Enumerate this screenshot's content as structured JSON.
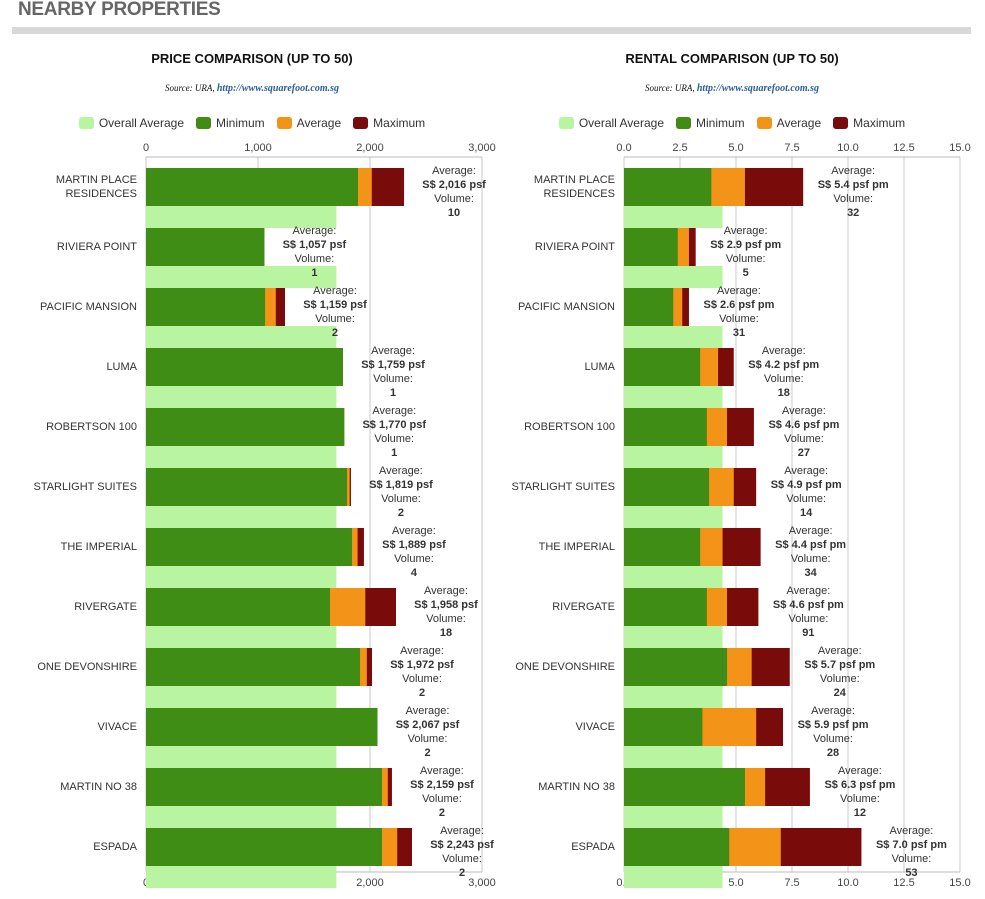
{
  "header": {
    "title": "NEARBY PROPERTIES"
  },
  "chart_data": [
    {
      "type": "bar",
      "orientation": "horizontal",
      "title": "PRICE COMPARISON (UP TO 50)",
      "source": "Source: URA,",
      "source_link": "http://www.squarefoot.com.sg",
      "categories": [
        "MARTIN PLACE\nRESIDENCES",
        "RIVIERA POINT",
        "PACIFIC MANSION",
        "LUMA",
        "ROBERTSON 100",
        "STARLIGHT SUITES",
        "THE IMPERIAL",
        "RIVERGATE",
        "ONE DEVONSHIRE",
        "VIVACE",
        "MARTIN NO 38",
        "ESPADA"
      ],
      "series": [
        {
          "name": "Overall Average",
          "color": "#b9f5a0",
          "values": [
            1700,
            1700,
            1700,
            1700,
            1700,
            1700,
            1700,
            1700,
            1700,
            1700,
            1700,
            1700
          ]
        },
        {
          "name": "Minimum",
          "color": "#3f8d14",
          "values": [
            1893,
            1057,
            1063,
            1759,
            1770,
            1795,
            1839,
            1643,
            1911,
            2067,
            2107,
            2107
          ]
        },
        {
          "name": "Average",
          "color": "#f39419",
          "values": [
            2016,
            1057,
            1159,
            1759,
            1770,
            1819,
            1889,
            1958,
            1972,
            2067,
            2159,
            2243
          ],
          "value_labels": [
            "S$ 2,016 psf",
            "S$ 1,057 psf",
            "S$ 1,159 psf",
            "S$ 1,759 psf",
            "S$ 1,770 psf",
            "S$ 1,819 psf",
            "S$ 1,889 psf",
            "S$ 1,958 psf",
            "S$ 1,972 psf",
            "S$ 2,067 psf",
            "S$ 2,159 psf",
            "S$ 2,243 psf"
          ]
        },
        {
          "name": "Maximum",
          "color": "#7a0b0b",
          "values": [
            2304,
            1057,
            1241,
            1759,
            1770,
            1830,
            1946,
            2232,
            2018,
            2067,
            2196,
            2375
          ]
        }
      ],
      "average_label": "Average:",
      "volume_label": "Volume:",
      "volumes": [
        10,
        1,
        2,
        1,
        1,
        2,
        4,
        18,
        2,
        2,
        2,
        2
      ],
      "xlim": [
        0,
        3000
      ],
      "xticks": [
        0,
        {
          "value": 1000,
          "label": "1,000"
        },
        {
          "value": 2000,
          "label": "2,000"
        },
        {
          "value": 3000,
          "label": "3,000"
        }
      ],
      "grid": true
    },
    {
      "type": "bar",
      "orientation": "horizontal",
      "title": "RENTAL COMPARISON (UP TO 50)",
      "source": "Source: URA,",
      "source_link": "http://www.squarefoot.com.sg",
      "categories": [
        "MARTIN PLACE\nRESIDENCES",
        "RIVIERA POINT",
        "PACIFIC MANSION",
        "LUMA",
        "ROBERTSON 100",
        "STARLIGHT SUITES",
        "THE IMPERIAL",
        "RIVERGATE",
        "ONE DEVONSHIRE",
        "VIVACE",
        "MARTIN NO 38",
        "ESPADA"
      ],
      "series": [
        {
          "name": "Overall Average",
          "color": "#b9f5a0",
          "values": [
            4.4,
            4.4,
            4.4,
            4.4,
            4.4,
            4.4,
            4.4,
            4.4,
            4.4,
            4.4,
            4.4,
            4.4
          ]
        },
        {
          "name": "Minimum",
          "color": "#3f8d14",
          "values": [
            3.9,
            2.4,
            2.2,
            3.4,
            3.7,
            3.8,
            3.4,
            3.7,
            4.6,
            3.5,
            5.4,
            4.7
          ]
        },
        {
          "name": "Average",
          "color": "#f39419",
          "values": [
            5.4,
            2.9,
            2.6,
            4.2,
            4.6,
            4.9,
            4.4,
            4.6,
            5.7,
            5.9,
            6.3,
            7.0
          ],
          "value_labels": [
            "S$ 5.4 psf pm",
            "S$ 2.9 psf pm",
            "S$ 2.6 psf pm",
            "S$ 4.2 psf pm",
            "S$ 4.6 psf pm",
            "S$ 4.9 psf pm",
            "S$ 4.4 psf pm",
            "S$ 4.6 psf pm",
            "S$ 5.7 psf pm",
            "S$ 5.9 psf pm",
            "S$ 6.3 psf pm",
            "S$ 7.0 psf pm"
          ]
        },
        {
          "name": "Maximum",
          "color": "#7a0b0b",
          "values": [
            8.0,
            3.2,
            2.9,
            4.9,
            5.8,
            5.9,
            6.1,
            6.0,
            7.4,
            7.1,
            8.3,
            10.6
          ]
        }
      ],
      "average_label": "Average:",
      "volume_label": "Volume:",
      "volumes": [
        32,
        5,
        31,
        18,
        27,
        14,
        34,
        91,
        24,
        28,
        12,
        53
      ],
      "xlim": [
        0,
        15
      ],
      "xticks": [
        {
          "value": 0,
          "label": "0.0"
        },
        2.5,
        {
          "value": 5,
          "label": "5.0"
        },
        7.5,
        {
          "value": 10,
          "label": "10.0"
        },
        12.5,
        {
          "value": 15,
          "label": "15.0"
        }
      ],
      "grid": true
    }
  ]
}
